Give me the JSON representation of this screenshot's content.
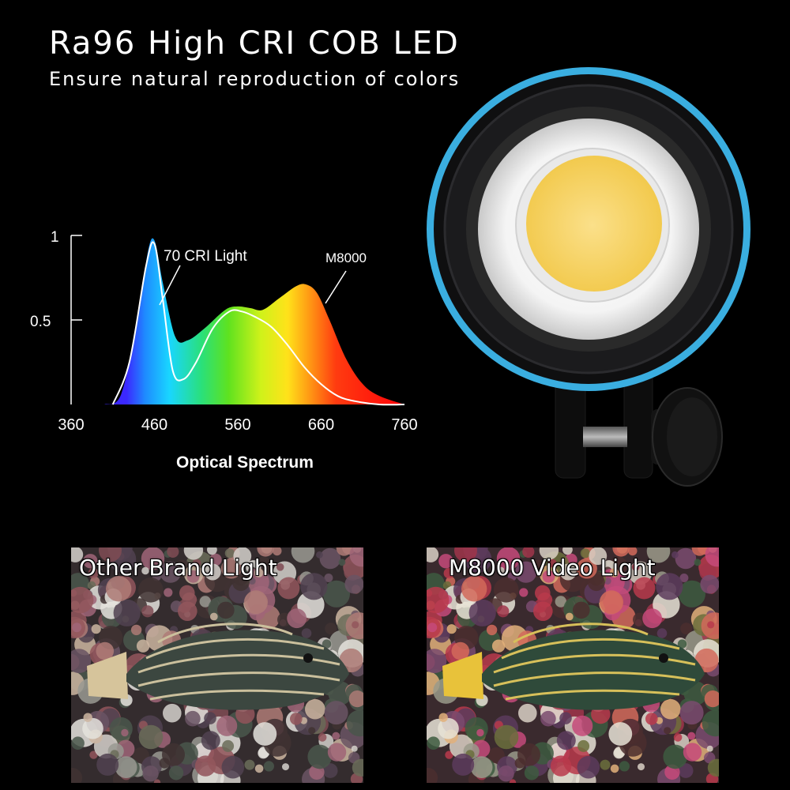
{
  "header": {
    "title": "Ra96 High CRI COB LED",
    "subtitle": "Ensure natural reproduction of colors"
  },
  "chart_data": {
    "type": "area",
    "xlabel": "Optical Spectrum",
    "ylabel": "",
    "xlim": [
      360,
      760
    ],
    "ylim": [
      0,
      1
    ],
    "x_ticks": [
      "360",
      "460",
      "560",
      "660",
      "760"
    ],
    "y_ticks": [
      "0.5",
      "1"
    ],
    "annotations": [
      "70 CRI Light",
      "M8000"
    ],
    "series": [
      {
        "name": "M8000",
        "x": [
          400,
          420,
          440,
          452,
          460,
          470,
          485,
          500,
          520,
          545,
          560,
          575,
          590,
          610,
          630,
          642,
          655,
          670,
          690,
          710,
          730,
          760
        ],
        "values": [
          0.0,
          0.06,
          0.5,
          0.9,
          0.97,
          0.72,
          0.4,
          0.38,
          0.45,
          0.56,
          0.58,
          0.57,
          0.56,
          0.63,
          0.7,
          0.71,
          0.66,
          0.5,
          0.27,
          0.12,
          0.05,
          0.0
        ]
      },
      {
        "name": "70 CRI Light",
        "x": [
          410,
          430,
          450,
          460,
          470,
          482,
          495,
          510,
          530,
          550,
          565,
          580,
          600,
          620,
          640,
          660,
          680,
          700,
          730,
          760
        ],
        "values": [
          0.0,
          0.25,
          0.82,
          0.95,
          0.62,
          0.2,
          0.15,
          0.25,
          0.45,
          0.55,
          0.55,
          0.52,
          0.46,
          0.35,
          0.22,
          0.12,
          0.05,
          0.02,
          0.0,
          0.0
        ]
      }
    ]
  },
  "comparison": {
    "left_label": "Other Brand Light",
    "right_label": "M8000 Video Light"
  },
  "colors": {
    "background": "#000000",
    "housing_ring": "#3aaee0",
    "led_core": "#f6d36a"
  },
  "icons": [
    "video-light-product",
    "mounting-knob-icon"
  ]
}
